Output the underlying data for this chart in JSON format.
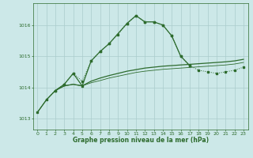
{
  "x": [
    0,
    1,
    2,
    3,
    4,
    5,
    6,
    7,
    8,
    9,
    10,
    11,
    12,
    13,
    14,
    15,
    16,
    17,
    18,
    19,
    20,
    21,
    22,
    23
  ],
  "line_dotted": [
    1013.2,
    1013.6,
    1013.9,
    1014.1,
    1014.45,
    1014.2,
    1014.85,
    1015.15,
    1015.4,
    1015.7,
    1016.05,
    1016.3,
    1016.1,
    1016.1,
    1016.0,
    1015.65,
    1015.0,
    1014.7,
    1014.55,
    1014.5,
    1014.45,
    1014.5,
    1014.55,
    1014.65
  ],
  "line_solid_x": [
    2,
    3,
    4,
    5,
    6,
    7,
    8,
    10,
    11,
    12,
    13,
    14,
    15,
    16,
    17
  ],
  "line_solid_y": [
    1013.9,
    1014.1,
    1014.45,
    1014.05,
    1014.85,
    1015.15,
    1015.4,
    1016.05,
    1016.3,
    1016.1,
    1016.1,
    1016.0,
    1015.65,
    1015.0,
    1014.7
  ],
  "line_flat1_x": [
    0,
    1,
    2,
    3,
    4,
    5,
    6,
    7,
    8,
    9,
    10,
    11,
    12,
    13,
    14,
    15,
    16,
    17,
    18,
    19,
    20,
    21,
    22,
    23
  ],
  "line_flat1_y": [
    1013.2,
    1013.6,
    1013.9,
    1014.05,
    1014.1,
    1014.05,
    1014.2,
    1014.3,
    1014.38,
    1014.45,
    1014.52,
    1014.57,
    1014.62,
    1014.65,
    1014.68,
    1014.7,
    1014.72,
    1014.74,
    1014.76,
    1014.78,
    1014.8,
    1014.82,
    1014.85,
    1014.9
  ],
  "line_flat2_x": [
    0,
    1,
    2,
    3,
    4,
    5,
    6,
    7,
    8,
    9,
    10,
    11,
    12,
    13,
    14,
    15,
    16,
    17,
    18,
    19,
    20,
    21,
    22,
    23
  ],
  "line_flat2_y": [
    1013.2,
    1013.6,
    1013.9,
    1014.05,
    1014.1,
    1014.05,
    1014.15,
    1014.22,
    1014.3,
    1014.36,
    1014.42,
    1014.48,
    1014.52,
    1014.55,
    1014.58,
    1014.6,
    1014.62,
    1014.64,
    1014.66,
    1014.68,
    1014.7,
    1014.72,
    1014.75,
    1014.8
  ],
  "bg_color": "#cce8e8",
  "grid_color": "#aacccc",
  "line_color": "#2d6b2d",
  "yticks": [
    1013,
    1014,
    1015,
    1016
  ],
  "ylim": [
    1012.65,
    1016.7
  ],
  "xlim": [
    -0.5,
    23.5
  ],
  "xlabel": "Graphe pression niveau de la mer (hPa)"
}
